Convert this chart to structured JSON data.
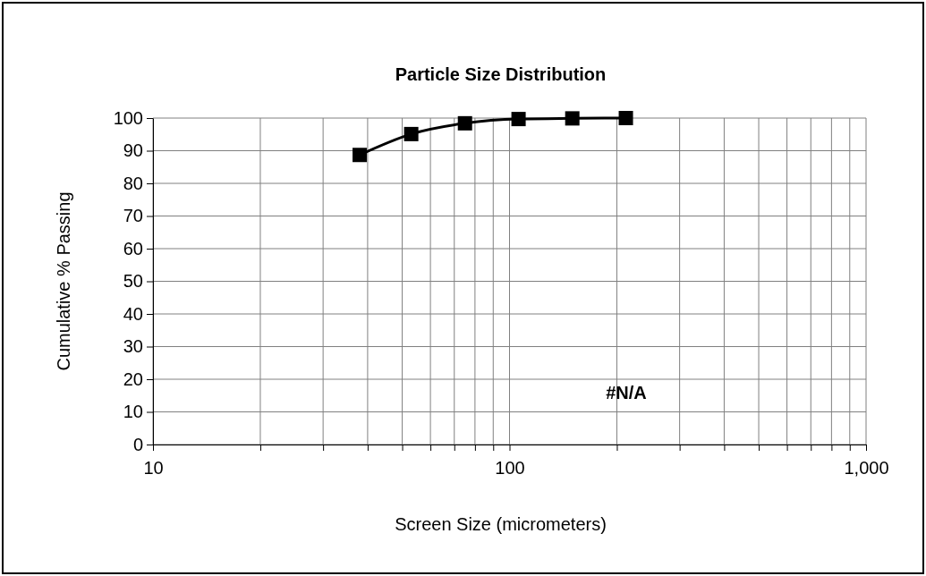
{
  "chart_data": {
    "type": "line",
    "title": "Particle Size Distribution",
    "xlabel": "Screen Size (micrometers)",
    "ylabel": "Cumulative % Passing",
    "log": "x",
    "grid": true,
    "marker": "square",
    "line_style": "solid",
    "xlim": [
      10,
      1000
    ],
    "xticks": [
      10,
      {
        "value": 20,
        "label": null
      },
      {
        "value": 30,
        "label": null
      },
      {
        "value": 40,
        "label": null
      },
      {
        "value": 50,
        "label": null
      },
      {
        "value": 60,
        "label": null
      },
      {
        "value": 70,
        "label": null
      },
      {
        "value": 80,
        "label": null
      },
      {
        "value": 90,
        "label": null
      },
      100,
      {
        "value": 200,
        "label": null
      },
      {
        "value": 300,
        "label": null
      },
      {
        "value": 400,
        "label": null
      },
      {
        "value": 500,
        "label": null
      },
      {
        "value": 600,
        "label": null
      },
      {
        "value": 700,
        "label": null
      },
      {
        "value": 800,
        "label": null
      },
      {
        "value": 900,
        "label": null
      },
      {
        "value": 1000,
        "label": "1,000"
      }
    ],
    "ylim": [
      0,
      100
    ],
    "yticks": [
      0,
      10,
      20,
      30,
      40,
      50,
      60,
      70,
      80,
      90,
      100
    ],
    "x": [
      38,
      53,
      75,
      106,
      150,
      212
    ],
    "series": [
      {
        "color": "#000000",
        "values": [
          88.7,
          95.1,
          98.4,
          99.7,
          99.9,
          100
        ]
      }
    ],
    "annotations": [
      "#N/A"
    ]
  }
}
